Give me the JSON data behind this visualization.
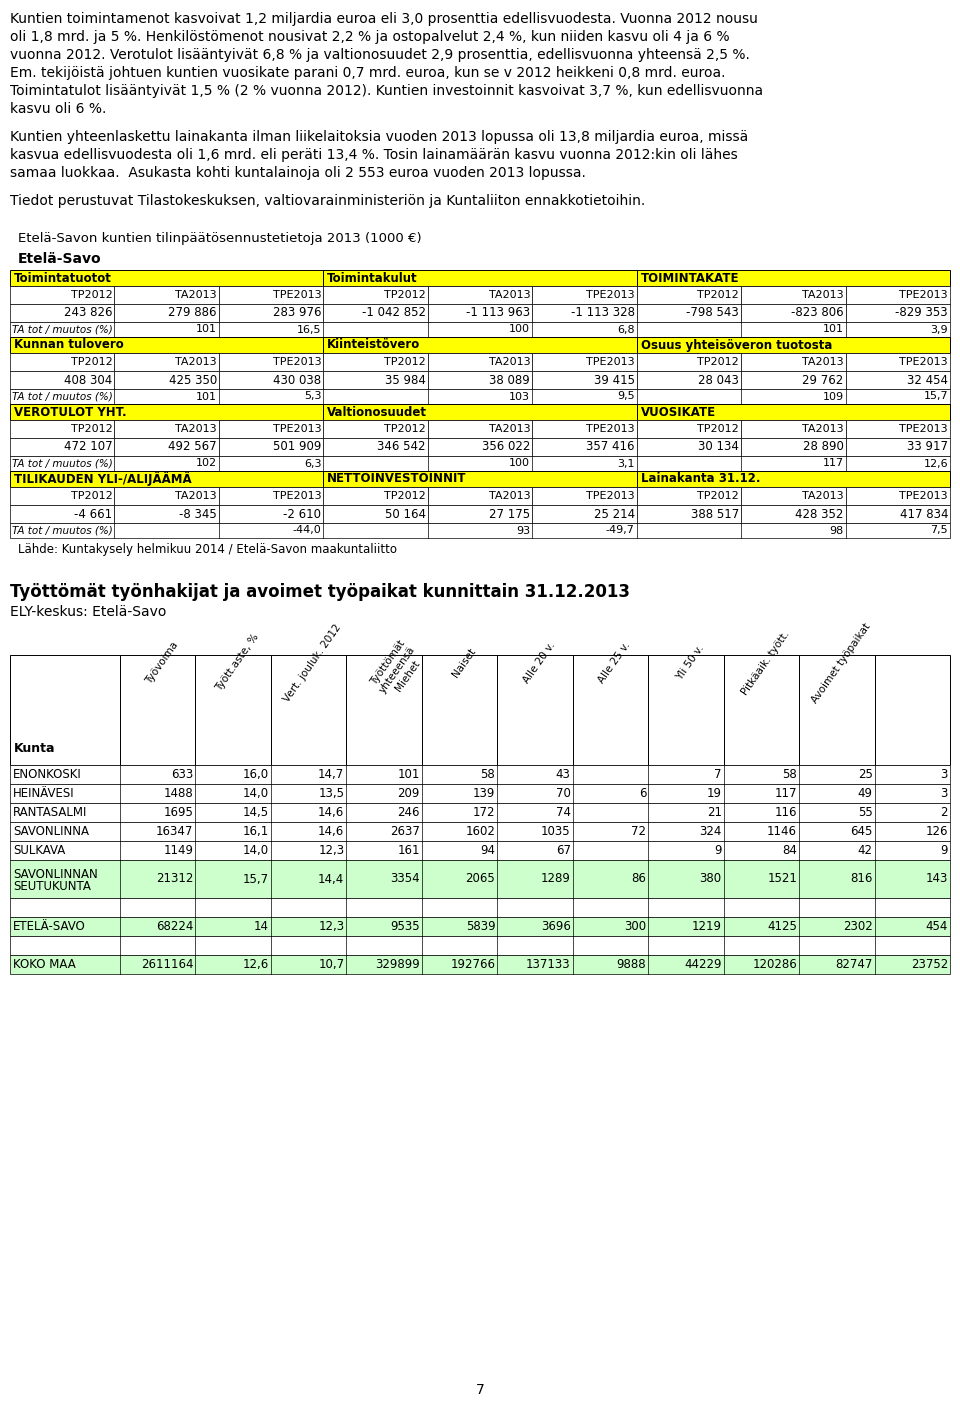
{
  "body_text": [
    "Kuntien toimintamenot kasvoivat 1,2 miljardia euroa eli 3,0 prosenttia edellisvuodesta. Vuonna 2012 nousu",
    "oli 1,8 mrd. ja 5 %. Henkilöstömenot nousivat 2,2 % ja ostopalvelut 2,4 %, kun niiden kasvu oli 4 ja 6 %",
    "vuonna 2012. Verotulot lisääntyivät 6,8 % ja valtionosuudet 2,9 prosenttia, edellisvuonna yhteensä 2,5 %.",
    "Em. tekijöistä johtuen kuntien vuosikate parani 0,7 mrd. euroa, kun se v 2012 heikkeni 0,8 mrd. euroa.",
    "Toimintatulot lisääntyivät 1,5 % (2 % vuonna 2012). Kuntien investoinnit kasvoivat 3,7 %, kun edellisvuonna",
    "kasvu oli 6 %."
  ],
  "body_text2": [
    "Kuntien yhteenlaskettu lainakanta ilman liikelaitoksia vuoden 2013 lopussa oli 13,8 miljardia euroa, missä",
    "kasvua edellisvuodesta oli 1,6 mrd. eli peräti 13,4 %. Tosin lainamäärän kasvu vuonna 2012:kin oli lähes",
    "samaa luokkaa.  Asukasta kohti kuntalainoja oli 2 553 euroa vuoden 2013 lopussa."
  ],
  "body_text3": [
    "Tiedot perustuvat Tilastokeskuksen, valtiovarainministeriön ja Kuntaliiton ennakkotietoihin."
  ],
  "table1_title": "Etelä-Savon kuntien tilinpäätösennustetietoja 2013 (1000 €)",
  "table1_subtitle": "Etelä-Savo",
  "table1_header_color": "#FFFF00",
  "table1_data": {
    "section1": {
      "headers": [
        "Toimintatuotot",
        "",
        "",
        "Toimintakulut",
        "",
        "",
        "TOIMINTAKATE",
        "",
        ""
      ],
      "subheaders": [
        "TP2012",
        "TA2013",
        "TPE2013",
        "TP2012",
        "TA2013",
        "TPE2013",
        "TP2012",
        "TA2013",
        "TPE2013"
      ],
      "values": [
        "243 826",
        "279 886",
        "283 976",
        "-1 042 852",
        "-1 113 963",
        "-1 113 328",
        "-798 543",
        "-823 806",
        "-829 353"
      ],
      "footer": [
        "TA tot / muutos (%)",
        "101",
        "16,5",
        "",
        "100",
        "6,8",
        "",
        "101",
        "3,9"
      ]
    },
    "section2": {
      "headers": [
        "Kunnan tulovero",
        "",
        "",
        "Kiinteistövero",
        "",
        "",
        "Osuus yhteisöveron tuotosta",
        "",
        ""
      ],
      "subheaders": [
        "TP2012",
        "TA2013",
        "TPE2013",
        "TP2012",
        "TA2013",
        "TPE2013",
        "TP2012",
        "TA2013",
        "TPE2013"
      ],
      "values": [
        "408 304",
        "425 350",
        "430 038",
        "35 984",
        "38 089",
        "39 415",
        "28 043",
        "29 762",
        "32 454"
      ],
      "footer": [
        "TA tot / muutos (%)",
        "101",
        "5,3",
        "",
        "103",
        "9,5",
        "",
        "109",
        "15,7"
      ]
    },
    "section3": {
      "headers": [
        "VEROTULOT YHT.",
        "",
        "",
        "Valtionosuudet",
        "",
        "",
        "VUOSIKATE",
        "",
        ""
      ],
      "subheaders": [
        "TP2012",
        "TA2013",
        "TPE2013",
        "TP2012",
        "TA2013",
        "TPE2013",
        "TP2012",
        "TA2013",
        "TPE2013"
      ],
      "values": [
        "472 107",
        "492 567",
        "501 909",
        "346 542",
        "356 022",
        "357 416",
        "30 134",
        "28 890",
        "33 917"
      ],
      "footer": [
        "TA tot / muutos (%)",
        "102",
        "6,3",
        "",
        "100",
        "3,1",
        "",
        "117",
        "12,6"
      ]
    },
    "section4": {
      "headers": [
        "TILIKAUDEN YLI-/ALIJÄÄMÄ",
        "",
        "",
        "NETTOINVESTOINNIT",
        "",
        "",
        "Lainakanta 31.12.",
        "",
        ""
      ],
      "subheaders": [
        "TP2012",
        "TA2013",
        "TPE2013",
        "TP2012",
        "TA2013",
        "TPE2013",
        "TP2012",
        "TA2013",
        "TPE2013"
      ],
      "values": [
        "-4 661",
        "-8 345",
        "-2 610",
        "50 164",
        "27 175",
        "25 214",
        "388 517",
        "428 352",
        "417 834"
      ],
      "footer": [
        "TA tot / muutos (%)",
        "",
        "-44,0",
        "",
        "93",
        "-49,7",
        "",
        "98",
        "7,5"
      ]
    }
  },
  "table1_source": "Lähde: Kuntakysely helmikuu 2014 / Etelä-Savon maakuntaliitto",
  "table2_title": "Työttömät työnhakijat ja avoimet työpaikat kunnittain 31.12.2013",
  "table2_subtitle": "ELY-keskus: Etelä-Savo",
  "table2_headers": [
    "Kunta",
    "Työvoima",
    "Tyött.aste, %",
    "Vert. jouluk. 2012",
    "Työttömät\nyhteeensä\nMiehet",
    "Naiset",
    "Alle 20 v.",
    "Alle 25 v.",
    "Yli 50 v.",
    "Pitkäaik. tyött.",
    "Avoimet työpaikat"
  ],
  "table2_rows": [
    [
      "ENONKOSKI",
      "633",
      "16,0",
      "14,7",
      "101",
      "58",
      "43",
      "",
      "7",
      "58",
      "25",
      "3"
    ],
    [
      "HEINÄVESI",
      "1488",
      "14,0",
      "13,5",
      "209",
      "139",
      "70",
      "6",
      "19",
      "117",
      "49",
      "3"
    ],
    [
      "RANTASALMI",
      "1695",
      "14,5",
      "14,6",
      "246",
      "172",
      "74",
      "",
      "21",
      "116",
      "55",
      "2"
    ],
    [
      "SAVONLINNA",
      "16347",
      "16,1",
      "14,6",
      "2637",
      "1602",
      "1035",
      "72",
      "324",
      "1146",
      "645",
      "126"
    ],
    [
      "SULKAVA",
      "1149",
      "14,0",
      "12,3",
      "161",
      "94",
      "67",
      "",
      "9",
      "84",
      "42",
      "9"
    ]
  ],
  "table2_seutukunta": [
    "SAVONLINNAN\nSEUTUKUNTA",
    "21312",
    "15,7",
    "14,4",
    "3354",
    "2065",
    "1289",
    "86",
    "380",
    "1521",
    "816",
    "143"
  ],
  "table2_etela_savo": [
    "ETELÄ-SAVO",
    "68224",
    "14",
    "12,3",
    "9535",
    "5839",
    "3696",
    "300",
    "1219",
    "4125",
    "2302",
    "454"
  ],
  "table2_koko_maa": [
    "KOKO MAA",
    "2611164",
    "12,6",
    "10,7",
    "329899",
    "192766",
    "137133",
    "9888",
    "44229",
    "120286",
    "82747",
    "23752"
  ],
  "page_number": "7",
  "seutukunta_color": "#CCFFCC",
  "etela_savo_color": "#CCFFCC",
  "koko_maa_color": "#CCFFCC"
}
